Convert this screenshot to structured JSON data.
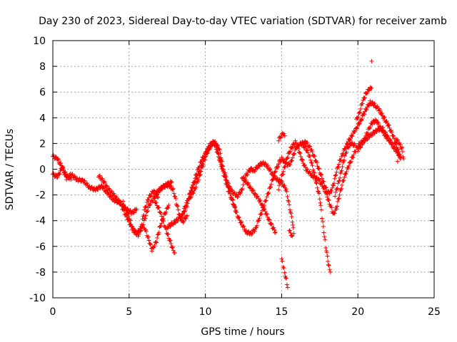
{
  "chart_data": {
    "type": "scatter",
    "title": "Day 230 of 2023, Sidereal Day-to-day VTEC variation (SDTVAR) for receiver zamb",
    "xlabel": "GPS time / hours",
    "ylabel": "SDTVAR / TECUs",
    "xlim": [
      0,
      25
    ],
    "ylim": [
      -10,
      10
    ],
    "xticks": [
      0,
      5,
      10,
      15,
      20,
      25
    ],
    "yticks": [
      -10,
      -8,
      -6,
      -4,
      -2,
      0,
      2,
      4,
      6,
      8,
      10
    ],
    "grid": true,
    "marker": "+",
    "series": [
      {
        "name": "SDTVAR",
        "color": "#ff0000",
        "arcs": [
          [
            [
              0.0,
              -0.4
            ],
            [
              0.3,
              -0.6
            ],
            [
              0.6,
              0.1
            ],
            [
              0.9,
              -0.7
            ],
            [
              1.2,
              -0.4
            ],
            [
              1.6,
              -0.8
            ],
            [
              2.0,
              -0.9
            ],
            [
              2.4,
              -1.4
            ],
            [
              2.8,
              -1.6
            ],
            [
              3.2,
              -1.3
            ],
            [
              3.6,
              -1.9
            ],
            [
              4.0,
              -2.4
            ],
            [
              4.4,
              -2.6
            ],
            [
              4.8,
              -3.1
            ],
            [
              5.2,
              -3.4
            ],
            [
              5.5,
              -3.1
            ]
          ],
          [
            [
              0.0,
              1.0
            ],
            [
              0.3,
              0.8
            ],
            [
              0.6,
              0.2
            ],
            [
              0.9,
              -0.5
            ],
            [
              1.2,
              -0.8
            ]
          ],
          [
            [
              3.0,
              -0.5
            ],
            [
              3.3,
              -0.9
            ],
            [
              3.6,
              -1.5
            ],
            [
              4.0,
              -2.0
            ],
            [
              4.4,
              -2.6
            ],
            [
              4.8,
              -3.6
            ],
            [
              5.2,
              -4.6
            ],
            [
              5.5,
              -5.0
            ],
            [
              5.8,
              -4.5
            ],
            [
              6.0,
              -3.2
            ],
            [
              6.3,
              -2.2
            ],
            [
              6.6,
              -1.7
            ],
            [
              6.9,
              -2.2
            ]
          ],
          [
            [
              4.6,
              -2.6
            ],
            [
              5.0,
              -3.8
            ],
            [
              5.3,
              -4.8
            ],
            [
              5.6,
              -5.1
            ],
            [
              5.9,
              -4.4
            ],
            [
              6.1,
              -3.6
            ],
            [
              6.3,
              -2.8
            ],
            [
              6.6,
              -2.3
            ],
            [
              7.0,
              -1.6
            ],
            [
              7.4,
              -1.2
            ],
            [
              7.8,
              -1.0
            ]
          ],
          [
            [
              6.0,
              -4.5
            ],
            [
              6.3,
              -5.5
            ],
            [
              6.5,
              -6.3
            ],
            [
              6.8,
              -5.6
            ],
            [
              7.0,
              -4.6
            ],
            [
              7.3,
              -3.6
            ],
            [
              7.6,
              -2.8
            ]
          ],
          [
            [
              6.7,
              -2.5
            ],
            [
              7.0,
              -3.2
            ],
            [
              7.3,
              -4.3
            ],
            [
              7.6,
              -5.3
            ],
            [
              7.9,
              -6.3
            ],
            [
              8.0,
              -6.5
            ]
          ],
          [
            [
              6.8,
              -1.8
            ],
            [
              7.2,
              -1.4
            ],
            [
              7.6,
              -1.2
            ],
            [
              7.9,
              -1.6
            ],
            [
              8.1,
              -2.6
            ],
            [
              8.3,
              -3.6
            ],
            [
              8.5,
              -4.1
            ],
            [
              8.8,
              -3.6
            ]
          ],
          [
            [
              7.5,
              -4.5
            ],
            [
              8.0,
              -4.1
            ],
            [
              8.5,
              -3.6
            ],
            [
              8.8,
              -2.8
            ],
            [
              9.1,
              -1.6
            ],
            [
              9.4,
              -0.4
            ],
            [
              9.7,
              0.6
            ],
            [
              10.0,
              1.2
            ],
            [
              10.3,
              1.8
            ],
            [
              10.5,
              2.0
            ]
          ],
          [
            [
              8.5,
              -3.5
            ],
            [
              8.8,
              -2.5
            ],
            [
              9.1,
              -1.5
            ],
            [
              9.4,
              -0.8
            ],
            [
              9.7,
              0.1
            ],
            [
              10.0,
              1.2
            ],
            [
              10.3,
              1.9
            ],
            [
              10.6,
              2.1
            ],
            [
              10.9,
              1.6
            ],
            [
              11.1,
              0.6
            ]
          ],
          [
            [
              9.0,
              -2.2
            ],
            [
              9.3,
              -1.6
            ],
            [
              9.6,
              -0.6
            ],
            [
              9.9,
              0.6
            ],
            [
              10.2,
              1.5
            ],
            [
              10.5,
              2.1
            ],
            [
              10.8,
              1.6
            ],
            [
              11.0,
              0.6
            ],
            [
              11.3,
              -0.4
            ],
            [
              11.5,
              -1.3
            ],
            [
              11.8,
              -1.8
            ],
            [
              12.1,
              -2.1
            ],
            [
              12.4,
              -1.6
            ],
            [
              12.6,
              -0.6
            ],
            [
              13.0,
              0.1
            ]
          ],
          [
            [
              10.6,
              2.1
            ],
            [
              10.9,
              0.8
            ],
            [
              11.2,
              -0.4
            ],
            [
              11.5,
              -1.6
            ],
            [
              11.8,
              -2.6
            ],
            [
              12.1,
              -3.6
            ],
            [
              12.4,
              -4.3
            ],
            [
              12.7,
              -4.9
            ],
            [
              13.0,
              -5.0
            ],
            [
              13.3,
              -4.6
            ],
            [
              13.6,
              -3.6
            ],
            [
              13.9,
              -2.6
            ],
            [
              14.2,
              -1.6
            ],
            [
              14.4,
              -0.8
            ],
            [
              14.6,
              -0.1
            ],
            [
              14.8,
              0.4
            ]
          ],
          [
            [
              11.3,
              -0.5
            ],
            [
              11.6,
              -1.5
            ],
            [
              11.8,
              -2.5
            ],
            [
              12.0,
              -3.2
            ]
          ],
          [
            [
              12.4,
              -0.6
            ],
            [
              12.7,
              -1.0
            ],
            [
              13.0,
              -1.5
            ],
            [
              13.3,
              -2.0
            ],
            [
              13.6,
              -2.5
            ],
            [
              13.8,
              -3.0
            ],
            [
              14.0,
              -3.5
            ],
            [
              14.2,
              -4.0
            ],
            [
              14.4,
              -4.5
            ],
            [
              14.6,
              -4.9
            ]
          ],
          [
            [
              12.9,
              0.0
            ],
            [
              13.2,
              -0.1
            ],
            [
              13.5,
              0.3
            ],
            [
              13.8,
              0.5
            ],
            [
              14.1,
              0.2
            ],
            [
              14.4,
              -0.4
            ],
            [
              14.7,
              -0.8
            ],
            [
              15.0,
              -1.0
            ],
            [
              15.3,
              -1.6
            ],
            [
              15.5,
              -2.8
            ],
            [
              15.7,
              -4.0
            ],
            [
              15.8,
              -5.0
            ]
          ],
          [
            [
              14.8,
              0.5
            ],
            [
              15.0,
              0.8
            ],
            [
              15.2,
              0.6
            ],
            [
              15.4,
              0.3
            ],
            [
              15.6,
              0.5
            ],
            [
              15.8,
              1.2
            ],
            [
              16.0,
              1.8
            ],
            [
              16.3,
              2.0
            ],
            [
              16.6,
              2.1
            ],
            [
              16.9,
              1.6
            ],
            [
              17.2,
              0.8
            ],
            [
              17.5,
              -0.2
            ],
            [
              17.8,
              -1.2
            ],
            [
              18.0,
              -1.8
            ],
            [
              18.2,
              -1.8
            ],
            [
              18.4,
              -1.2
            ],
            [
              18.6,
              -0.2
            ],
            [
              18.8,
              0.6
            ],
            [
              19.0,
              1.2
            ],
            [
              19.3,
              2.0
            ],
            [
              19.6,
              2.6
            ],
            [
              19.9,
              3.2
            ],
            [
              20.2,
              3.8
            ],
            [
              20.5,
              4.6
            ],
            [
              20.8,
              5.2
            ],
            [
              21.1,
              5.0
            ],
            [
              21.4,
              4.6
            ],
            [
              21.7,
              4.0
            ],
            [
              22.0,
              3.4
            ],
            [
              22.3,
              2.6
            ],
            [
              22.6,
              1.6
            ],
            [
              22.8,
              0.8
            ]
          ],
          [
            [
              14.8,
              -1.5
            ],
            [
              15.0,
              -0.6
            ],
            [
              15.2,
              0.2
            ],
            [
              15.4,
              1.0
            ],
            [
              15.6,
              1.6
            ],
            [
              15.9,
              2.1
            ],
            [
              16.1,
              1.6
            ],
            [
              16.3,
              0.8
            ],
            [
              16.6,
              0.0
            ],
            [
              17.0,
              -0.5
            ],
            [
              17.4,
              -0.8
            ],
            [
              17.8,
              -1.5
            ],
            [
              18.1,
              -2.5
            ],
            [
              18.4,
              -3.5
            ],
            [
              18.6,
              -3.0
            ],
            [
              18.8,
              -2.0
            ],
            [
              19.0,
              -1.0
            ],
            [
              19.3,
              0.0
            ],
            [
              19.6,
              0.8
            ],
            [
              19.9,
              1.6
            ],
            [
              20.1,
              2.0
            ],
            [
              20.4,
              2.2
            ],
            [
              20.8,
              2.6
            ],
            [
              21.2,
              3.0
            ],
            [
              21.6,
              3.2
            ],
            [
              21.9,
              2.6
            ],
            [
              22.2,
              2.0
            ],
            [
              22.5,
              1.5
            ],
            [
              22.8,
              0.9
            ]
          ],
          [
            [
              14.8,
              2.3
            ],
            [
              15.1,
              2.8
            ],
            [
              15.2,
              2.6
            ]
          ],
          [
            [
              15.0,
              -7.0
            ],
            [
              15.1,
              -7.5
            ],
            [
              15.2,
              -8.0
            ],
            [
              15.3,
              -8.6
            ],
            [
              15.4,
              -9.2
            ]
          ],
          [
            [
              16.3,
              2.0
            ],
            [
              16.6,
              1.6
            ],
            [
              16.9,
              0.8
            ],
            [
              17.1,
              -0.2
            ],
            [
              17.3,
              -1.2
            ],
            [
              17.5,
              -2.2
            ],
            [
              17.6,
              -3.2
            ],
            [
              17.7,
              -4.2
            ],
            [
              17.8,
              -5.2
            ],
            [
              17.9,
              -6.0
            ],
            [
              18.0,
              -6.8
            ],
            [
              18.1,
              -7.6
            ],
            [
              18.2,
              -8.0
            ]
          ],
          [
            [
              18.5,
              -2.0
            ],
            [
              18.7,
              -1.2
            ],
            [
              18.9,
              -0.2
            ],
            [
              19.1,
              0.8
            ],
            [
              19.3,
              1.6
            ],
            [
              19.5,
              2.0
            ],
            [
              19.8,
              1.9
            ]
          ],
          [
            [
              20.0,
              1.5
            ],
            [
              20.3,
              2.0
            ],
            [
              20.6,
              2.8
            ],
            [
              20.9,
              3.6
            ],
            [
              21.2,
              3.8
            ],
            [
              21.5,
              3.2
            ],
            [
              21.8,
              2.6
            ],
            [
              22.1,
              2.2
            ],
            [
              22.4,
              1.6
            ],
            [
              22.7,
              1.2
            ]
          ],
          [
            [
              19.9,
              3.8
            ],
            [
              20.1,
              4.4
            ],
            [
              20.3,
              5.2
            ],
            [
              20.5,
              5.8
            ],
            [
              20.7,
              6.2
            ],
            [
              20.9,
              6.3
            ]
          ],
          [
            [
              22.5,
              2.4
            ],
            [
              22.7,
              2.0
            ],
            [
              22.9,
              1.6
            ],
            [
              23.0,
              0.8
            ]
          ],
          [
            [
              15.5,
              -4.8
            ],
            [
              15.7,
              -5.2
            ]
          ]
        ],
        "isolated": [
          [
            20.9,
            8.4
          ],
          [
            20.3,
            4.2
          ],
          [
            22.5,
            2.0
          ],
          [
            22.6,
            0.6
          ]
        ]
      }
    ]
  }
}
